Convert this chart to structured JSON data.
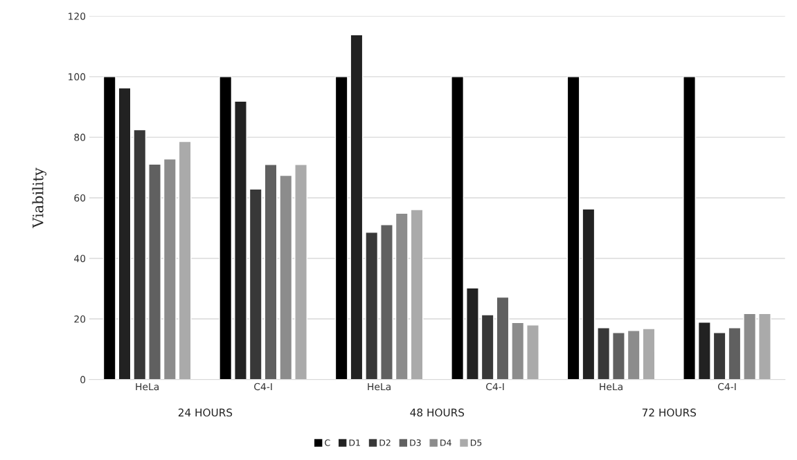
{
  "chart_data": {
    "type": "bar",
    "ylabel": "Viability",
    "categories": [
      "HeLa",
      "C4-I",
      "HeLa",
      "C4-I",
      "HeLa",
      "C4-I"
    ],
    "series": [
      {
        "name": "C",
        "color": "#000000",
        "values": [
          100,
          100,
          100,
          100,
          100,
          100
        ]
      },
      {
        "name": "D1",
        "color": "#222222",
        "values": [
          96.3,
          91.9,
          113.8,
          30.2,
          56.3,
          18.9
        ]
      },
      {
        "name": "D2",
        "color": "#383838",
        "values": [
          82.5,
          62.9,
          48.6,
          21.4,
          17.1,
          15.5
        ]
      },
      {
        "name": "D3",
        "color": "#606060",
        "values": [
          71.1,
          71.0,
          51.1,
          27.2,
          15.5,
          17.1
        ]
      },
      {
        "name": "D4",
        "color": "#8c8c8c",
        "values": [
          72.8,
          67.4,
          54.9,
          18.8,
          16.2,
          21.8
        ]
      },
      {
        "name": "D5",
        "color": "#aaaaaa",
        "values": [
          78.6,
          71.0,
          56.1,
          18.0,
          16.8,
          21.8
        ]
      }
    ],
    "annotations": [
      "24 HOURS",
      "48 HOURS",
      "72 HOURS"
    ],
    "ylim": [
      0,
      120
    ],
    "yticks": [
      0,
      20,
      40,
      60,
      80,
      100,
      120
    ],
    "grid": "y",
    "legend": "bottom"
  }
}
